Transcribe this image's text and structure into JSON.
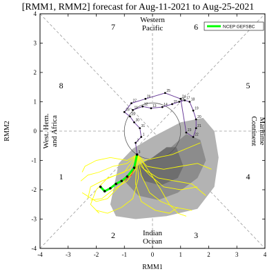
{
  "chart_data": {
    "type": "scatter",
    "title": "[RMM1, RMM2] forecast for Aug-11-2021 to Aug-25-2021",
    "xlabel": "RMM1",
    "ylabel": "RMM2",
    "xlim": [
      -4,
      4
    ],
    "ylim": [
      -4,
      4
    ],
    "xticks": [
      "-4",
      "-3",
      "-2",
      "-1",
      "0",
      "1",
      "2",
      "3",
      "4"
    ],
    "yticks": [
      "-4",
      "-3",
      "-2",
      "-1",
      "0",
      "1",
      "2",
      "3",
      "4"
    ],
    "phases": [
      {
        "label": "1",
        "x": -3.25,
        "y": -1.55
      },
      {
        "label": "2",
        "x": -1.4,
        "y": -3.55
      },
      {
        "label": "3",
        "x": 1.55,
        "y": -3.55
      },
      {
        "label": "4",
        "x": 3.4,
        "y": -1.55
      },
      {
        "label": "5",
        "x": 3.4,
        "y": 1.55
      },
      {
        "label": "6",
        "x": 1.55,
        "y": 3.55
      },
      {
        "label": "7",
        "x": -1.4,
        "y": 3.55
      },
      {
        "label": "8",
        "x": -3.25,
        "y": 1.55
      }
    ],
    "regions": {
      "top": [
        "Western",
        "Pacific"
      ],
      "bottom": [
        "Indian",
        "Ocean"
      ],
      "right": [
        "Maritime",
        "Continent"
      ],
      "left": [
        "West. Hem.",
        "and Africa"
      ]
    },
    "legend": {
      "label": "NCEP GEFSBC",
      "color": "#00ff00",
      "position": "top-right"
    },
    "observed": {
      "color": "#6a3d9a",
      "points": [
        [
          -0.7,
          0.72
        ],
        [
          -0.35,
          0.84
        ],
        [
          -0.05,
          0.78
        ],
        [
          0.35,
          0.82
        ],
        [
          0.7,
          0.92
        ],
        [
          0.95,
          1.0
        ],
        [
          1.15,
          1.05
        ],
        [
          1.32,
          1.0
        ],
        [
          1.45,
          0.7
        ],
        [
          1.55,
          0.4
        ],
        [
          1.55,
          0.1
        ],
        [
          1.45,
          -0.2
        ],
        [
          1.2,
          -0.05
        ],
        [
          1.0,
          1.1
        ],
        [
          0.45,
          1.3
        ],
        [
          -0.25,
          1.1
        ],
        [
          -0.75,
          0.95
        ],
        [
          -1.0,
          0.65
        ],
        [
          -0.8,
          0.5
        ],
        [
          -0.65,
          0.3
        ],
        [
          -0.45,
          0.1
        ],
        [
          -0.4,
          -0.2
        ],
        [
          -0.6,
          -0.4
        ],
        [
          -0.55,
          -0.8
        ]
      ],
      "day_labels": [
        "11",
        "12",
        "13",
        "14",
        "15",
        "16",
        "17",
        "18",
        "19",
        "20",
        "21",
        "22",
        "23",
        "24",
        "25",
        "26",
        "27",
        "28",
        "29",
        "30",
        "31",
        "1",
        "2",
        "3"
      ]
    },
    "ensemble_mean": {
      "color": "#00ff00",
      "points": [
        [
          -0.55,
          -0.8
        ],
        [
          -0.65,
          -1.25
        ],
        [
          -0.9,
          -1.55
        ],
        [
          -1.1,
          -1.7
        ],
        [
          -1.3,
          -1.8
        ],
        [
          -1.5,
          -1.95
        ],
        [
          -1.7,
          -2.05
        ],
        [
          -1.85,
          -1.9
        ]
      ]
    },
    "inner_forecast": {
      "color": "#ff3333",
      "points": [
        [
          -0.55,
          -0.8
        ],
        [
          -0.6,
          -1.2
        ],
        [
          -0.75,
          -1.5
        ],
        [
          -0.95,
          -1.65
        ],
        [
          -1.15,
          -1.75
        ],
        [
          -1.3,
          -1.85
        ]
      ]
    },
    "members_color": "#ffff00",
    "members": [
      [
        [
          -0.55,
          -0.8
        ],
        [
          -0.9,
          -1.1
        ],
        [
          -1.4,
          -1.2
        ],
        [
          -1.9,
          -1.4
        ],
        [
          -2.3,
          -1.5
        ],
        [
          -2.55,
          -1.7
        ]
      ],
      [
        [
          -0.55,
          -0.8
        ],
        [
          -0.6,
          -1.3
        ],
        [
          -0.9,
          -1.7
        ],
        [
          -1.4,
          -2.0
        ],
        [
          -1.8,
          -2.3
        ],
        [
          -2.2,
          -2.35
        ]
      ],
      [
        [
          -0.55,
          -0.8
        ],
        [
          -0.3,
          -1.3
        ],
        [
          0.2,
          -1.6
        ],
        [
          0.8,
          -1.7
        ],
        [
          1.4,
          -1.8
        ],
        [
          1.9,
          -2.2
        ]
      ],
      [
        [
          -0.55,
          -0.8
        ],
        [
          -0.2,
          -1.2
        ],
        [
          0.4,
          -1.3
        ],
        [
          1.0,
          -1.2
        ],
        [
          1.6,
          -1.1
        ],
        [
          2.1,
          -1.3
        ]
      ],
      [
        [
          -0.55,
          -0.8
        ],
        [
          -0.4,
          -1.5
        ],
        [
          -0.1,
          -2.1
        ],
        [
          0.3,
          -2.4
        ],
        [
          0.8,
          -2.6
        ],
        [
          1.4,
          -2.7
        ]
      ],
      [
        [
          -0.55,
          -0.8
        ],
        [
          -0.7,
          -1.4
        ],
        [
          -1.2,
          -1.9
        ],
        [
          -1.6,
          -2.3
        ],
        [
          -2.0,
          -2.4
        ],
        [
          -2.5,
          -2.1
        ]
      ],
      [
        [
          -0.55,
          -0.8
        ],
        [
          -0.9,
          -1.0
        ],
        [
          -1.5,
          -0.9
        ],
        [
          -2.0,
          -1.0
        ],
        [
          -2.4,
          -1.2
        ],
        [
          -2.5,
          -1.4
        ]
      ],
      [
        [
          -0.55,
          -0.8
        ],
        [
          -0.5,
          -1.6
        ],
        [
          -0.7,
          -2.3
        ],
        [
          -1.1,
          -2.6
        ],
        [
          -1.6,
          -2.8
        ],
        [
          -2.0,
          -2.7
        ]
      ],
      [
        [
          -0.55,
          -0.8
        ],
        [
          -0.1,
          -1.4
        ],
        [
          0.3,
          -2.0
        ],
        [
          0.6,
          -2.5
        ],
        [
          0.9,
          -2.8
        ],
        [
          1.2,
          -2.9
        ]
      ],
      [
        [
          -0.55,
          -0.8
        ],
        [
          -0.3,
          -1.0
        ],
        [
          0.2,
          -0.9
        ],
        [
          0.7,
          -0.8
        ],
        [
          1.2,
          -0.6
        ],
        [
          1.7,
          -0.4
        ]
      ],
      [
        [
          -0.55,
          -0.8
        ],
        [
          -0.8,
          -1.3
        ],
        [
          -1.3,
          -1.5
        ],
        [
          -1.8,
          -1.7
        ],
        [
          -2.2,
          -1.9
        ],
        [
          -2.3,
          -2.3
        ]
      ],
      [
        [
          -0.55,
          -0.8
        ],
        [
          -0.6,
          -1.8
        ],
        [
          -0.4,
          -2.4
        ],
        [
          0.1,
          -2.7
        ],
        [
          0.6,
          -2.8
        ],
        [
          0.9,
          -2.6
        ]
      ],
      [
        [
          -0.55,
          -0.8
        ],
        [
          -0.4,
          -1.2
        ],
        [
          -0.1,
          -1.5
        ],
        [
          0.4,
          -1.9
        ],
        [
          1.0,
          -2.0
        ],
        [
          1.6,
          -1.9
        ]
      ],
      [
        [
          -0.55,
          -0.8
        ],
        [
          -1.0,
          -1.4
        ],
        [
          -1.6,
          -1.6
        ],
        [
          -2.0,
          -2.0
        ],
        [
          -2.2,
          -2.5
        ],
        [
          -1.9,
          -2.8
        ]
      ]
    ],
    "spread_outer": [
      [
        -1.5,
        -2.5
      ],
      [
        -1.2,
        -1.1
      ],
      [
        -0.7,
        -0.6
      ],
      [
        0.0,
        -0.2
      ],
      [
        1.0,
        0.3
      ],
      [
        1.8,
        0.45
      ],
      [
        2.2,
        0.0
      ],
      [
        2.35,
        -0.9
      ],
      [
        2.2,
        -1.9
      ],
      [
        1.6,
        -2.65
      ],
      [
        0.5,
        -2.9
      ],
      [
        -0.6,
        -3.0
      ],
      [
        -1.3,
        -2.9
      ]
    ],
    "spread_inner": [
      [
        -1.0,
        -1.7
      ],
      [
        -0.7,
        -1.25
      ],
      [
        -0.2,
        -1.0
      ],
      [
        0.6,
        -0.6
      ],
      [
        1.2,
        -0.1
      ],
      [
        1.7,
        -0.3
      ],
      [
        1.9,
        -1.0
      ],
      [
        1.6,
        -1.6
      ],
      [
        0.9,
        -2.1
      ],
      [
        0.2,
        -2.35
      ],
      [
        -0.5,
        -2.2
      ]
    ],
    "spread_core": [
      [
        -0.55,
        -1.2
      ],
      [
        0.0,
        -0.9
      ],
      [
        0.5,
        -0.55
      ],
      [
        0.85,
        -0.55
      ],
      [
        1.1,
        -1.2
      ],
      [
        0.9,
        -1.6
      ],
      [
        0.3,
        -1.85
      ],
      [
        -0.3,
        -1.7
      ]
    ],
    "colors": {
      "spread_outer": "#b3b3b3",
      "spread_inner": "#8c8c8c",
      "spread_core": "#6e6e6e",
      "unit_circle": "#555555"
    }
  }
}
